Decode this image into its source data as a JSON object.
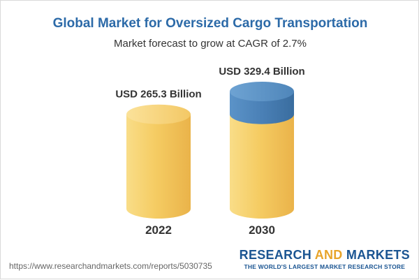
{
  "header": {
    "title": "Global Market for Oversized Cargo Transportation",
    "subtitle": "Market forecast to grow at CAGR of 2.7%"
  },
  "chart_data": {
    "type": "bar",
    "categories": [
      "2022",
      "2030"
    ],
    "values": [
      265.3,
      329.4
    ],
    "value_labels": [
      "USD 265.3 Billion",
      "USD 329.4 Billion"
    ],
    "title": "Global Market for Oversized Cargo Transportation",
    "subtitle": "Market forecast to grow at CAGR of 2.7%",
    "ylim": [
      0,
      329.4
    ],
    "grid": false,
    "colors": {
      "base": "#f6cf6c",
      "increment": "#4d84b9"
    }
  },
  "footer": {
    "source_url": "https://www.researchandmarkets.com/reports/5030735",
    "brand_part1": "RESEARCH ",
    "brand_part2": "AND",
    "brand_part3": " MARKETS",
    "brand_tagline": "THE WORLD'S LARGEST MARKET RESEARCH STORE"
  }
}
